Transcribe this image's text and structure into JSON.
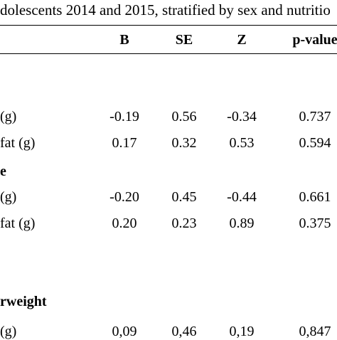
{
  "caption": "dolescents 2014 and 2015, stratified by sex and nutritio",
  "headers": {
    "b": "B",
    "se": "SE",
    "z": "Z",
    "p": "p-value"
  },
  "groups": [
    {
      "label": ""
    },
    {
      "label": "e"
    },
    {
      "label": "rweight"
    }
  ],
  "rows": [
    {
      "label": "(g)",
      "b": "-0.19",
      "se": "0.56",
      "z": "-0.34",
      "p": "0.737"
    },
    {
      "label": "fat (g)",
      "b": "0.17",
      "se": "0.32",
      "z": "0.53",
      "p": "0.594"
    },
    {
      "label": "(g)",
      "b": "-0.20",
      "se": "0.45",
      "z": "-0.44",
      "p": "0.661"
    },
    {
      "label": "fat (g)",
      "b": "0.20",
      "se": "0.23",
      "z": "0.89",
      "p": "0.375"
    },
    {
      "label": "(g)",
      "b": "0,09",
      "se": "0,46",
      "z": "0,19",
      "p": "0,847"
    }
  ]
}
